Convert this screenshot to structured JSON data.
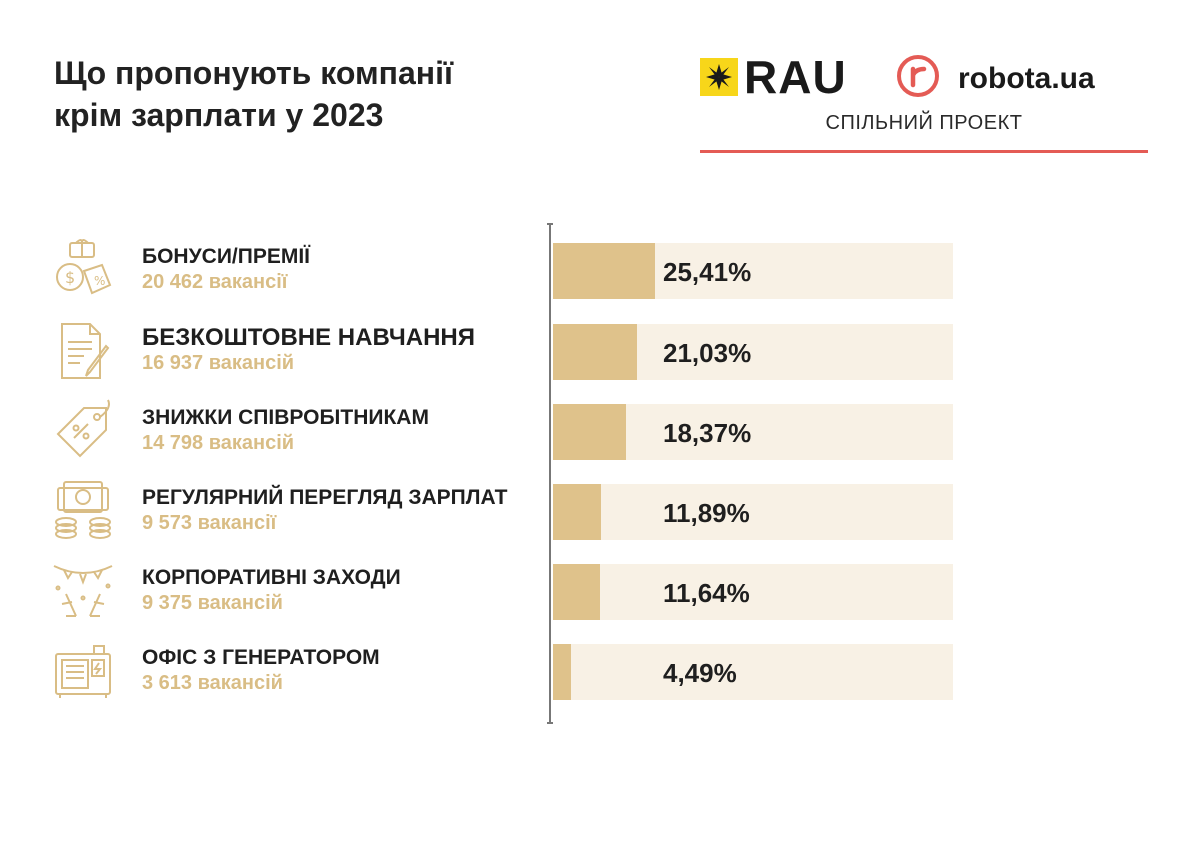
{
  "title_line1": "Що пропонують компанії",
  "title_line2": "крім зарплати у 2023",
  "brand": {
    "rau": "RAU",
    "robota": "robota.ua",
    "joint_label": "СПІЛЬНИЙ ПРОЕКТ"
  },
  "colors": {
    "bar_fill": "#dfc28b",
    "bar_track": "#f8f1e5",
    "count_text": "#d9bd85",
    "rau_yellow": "#f7d61a",
    "robota_red": "#e45b55"
  },
  "chart_data": {
    "type": "bar",
    "orientation": "horizontal",
    "categories": [
      "БОНУСИ/ПРЕМІЇ",
      "БЕЗКОШТОВНЕ НАВЧАННЯ",
      "ЗНИЖКИ СПІВРОБІТНИКАМ",
      "РЕГУЛЯРНИЙ ПЕРЕГЛЯД ЗАРПЛАТ",
      "КОРПОРАТИВНІ ЗАХОДИ",
      "ОФІС З ГЕНЕРАТОРОМ"
    ],
    "counts": [
      "20 462 вакансії",
      "16 937 вакансій",
      "14 798 вакансій",
      "9 573 вакансії",
      "9 375 вакансій",
      "3 613 вакансій"
    ],
    "values": [
      25.41,
      21.03,
      18.37,
      11.89,
      11.64,
      4.49
    ],
    "value_labels": [
      "25,41%",
      "21,03%",
      "18,37%",
      "11,89%",
      "11,64%",
      "4,49%"
    ],
    "icons": [
      "gift-money-icon",
      "document-pen-icon",
      "discount-tag-icon",
      "money-coins-icon",
      "party-confetti-icon",
      "generator-icon"
    ],
    "xlim": [
      0,
      100
    ],
    "grid": false
  }
}
